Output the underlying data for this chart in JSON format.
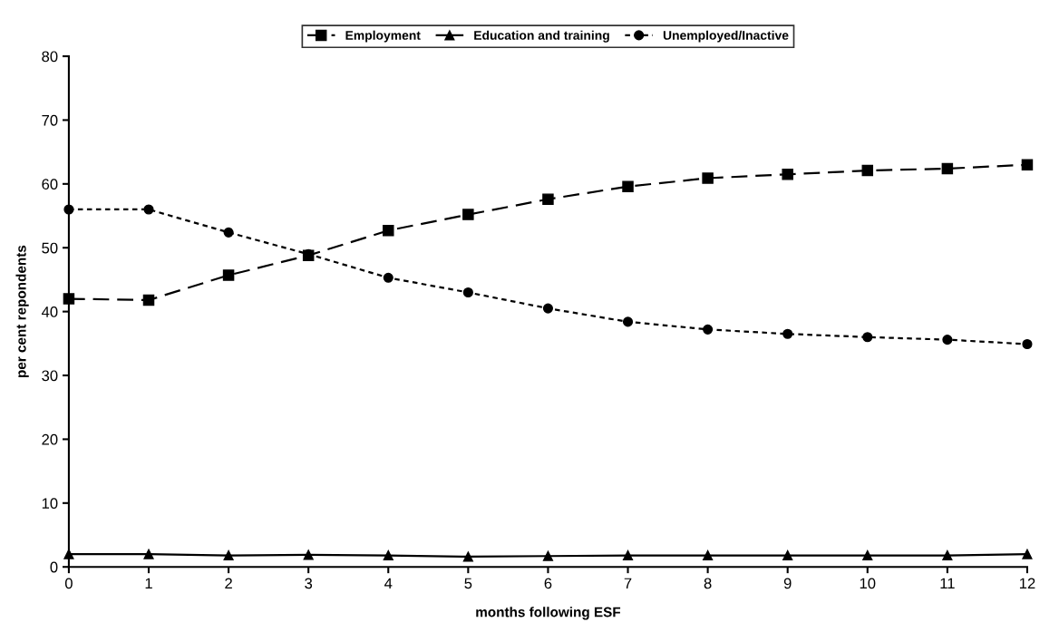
{
  "chart_data": {
    "type": "line",
    "xlabel": "months following ESF",
    "ylabel": "per cent repondents",
    "x": [
      0,
      1,
      2,
      3,
      4,
      5,
      6,
      7,
      8,
      9,
      10,
      11,
      12
    ],
    "series": [
      {
        "name": "Employment",
        "color": "#000000",
        "marker": "square",
        "line_style": "dashed",
        "values": [
          42,
          41.8,
          45.7,
          48.8,
          52.7,
          55.2,
          57.6,
          59.6,
          60.9,
          61.5,
          62.1,
          62.4,
          63.0
        ]
      },
      {
        "name": "Education and training",
        "color": "#000000",
        "marker": "triangle",
        "line_style": "solid",
        "values": [
          2.0,
          2.0,
          1.8,
          1.9,
          1.8,
          1.6,
          1.7,
          1.8,
          1.8,
          1.8,
          1.8,
          1.8,
          2.0
        ]
      },
      {
        "name": "Unemployed/Inactive",
        "color": "#000000",
        "marker": "circle",
        "line_style": "dotted",
        "values": [
          56,
          56,
          52.4,
          49,
          45.3,
          43,
          40.5,
          38.4,
          37.2,
          36.5,
          36,
          35.6,
          34.9
        ]
      }
    ],
    "xlim": [
      0,
      12
    ],
    "xticks": [
      0,
      1,
      2,
      3,
      4,
      5,
      6,
      7,
      8,
      9,
      10,
      11,
      12
    ],
    "ylim": [
      0,
      80
    ],
    "yticks": [
      0,
      10,
      20,
      30,
      40,
      50,
      60,
      70,
      80
    ],
    "grid": false,
    "legend": "top"
  }
}
